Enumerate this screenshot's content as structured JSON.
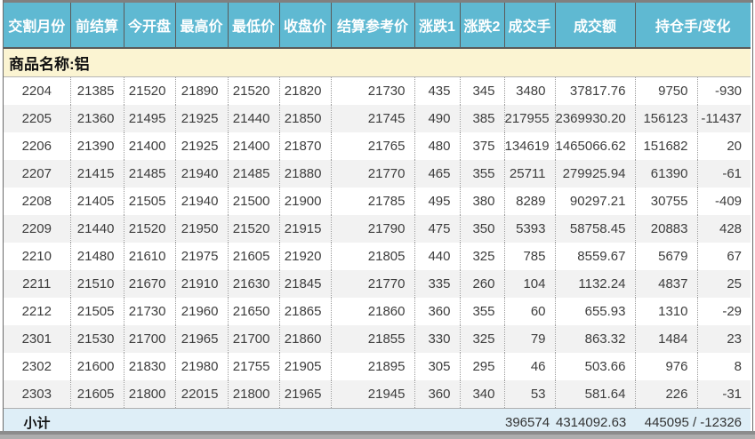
{
  "header": {
    "columns": [
      "交割月份",
      "前结算",
      "今开盘",
      "最高价",
      "最低价",
      "收盘价",
      "结算参考价",
      "涨跌1",
      "涨跌2",
      "成交手",
      "成交额",
      "持仓手/变化"
    ]
  },
  "product": {
    "label": "商品名称:铝"
  },
  "table": {
    "rows": [
      [
        "2204",
        "21385",
        "21520",
        "21890",
        "21520",
        "21820",
        "21730",
        "435",
        "345",
        "3480",
        "37817.76",
        "9750",
        "-930"
      ],
      [
        "2205",
        "21360",
        "21495",
        "21925",
        "21440",
        "21850",
        "21745",
        "490",
        "385",
        "217955",
        "2369930.20",
        "156123",
        "-11437"
      ],
      [
        "2206",
        "21390",
        "21400",
        "21925",
        "21400",
        "21870",
        "21765",
        "480",
        "375",
        "134619",
        "1465066.62",
        "151682",
        "20"
      ],
      [
        "2207",
        "21415",
        "21485",
        "21940",
        "21485",
        "21880",
        "21770",
        "465",
        "355",
        "25711",
        "279925.94",
        "61390",
        "-61"
      ],
      [
        "2208",
        "21405",
        "21505",
        "21940",
        "21500",
        "21900",
        "21785",
        "495",
        "380",
        "8289",
        "90297.21",
        "30755",
        "-409"
      ],
      [
        "2209",
        "21440",
        "21520",
        "21950",
        "21520",
        "21915",
        "21790",
        "475",
        "350",
        "5393",
        "58758.45",
        "20883",
        "428"
      ],
      [
        "2210",
        "21480",
        "21610",
        "21975",
        "21605",
        "21920",
        "21805",
        "440",
        "325",
        "785",
        "8559.67",
        "5679",
        "67"
      ],
      [
        "2211",
        "21510",
        "21670",
        "21910",
        "21630",
        "21845",
        "21770",
        "335",
        "260",
        "104",
        "1132.24",
        "4837",
        "25"
      ],
      [
        "2212",
        "21505",
        "21730",
        "21960",
        "21650",
        "21865",
        "21860",
        "360",
        "355",
        "60",
        "655.93",
        "1310",
        "-29"
      ],
      [
        "2301",
        "21530",
        "21700",
        "21965",
        "21700",
        "21860",
        "21855",
        "330",
        "325",
        "79",
        "863.32",
        "1484",
        "23"
      ],
      [
        "2302",
        "21600",
        "21830",
        "21980",
        "21755",
        "21905",
        "21895",
        "305",
        "295",
        "46",
        "503.66",
        "976",
        "8"
      ],
      [
        "2303",
        "21605",
        "21800",
        "22015",
        "21800",
        "21965",
        "21945",
        "360",
        "340",
        "53",
        "581.64",
        "226",
        "-31"
      ]
    ]
  },
  "subtotal": {
    "label": "小计",
    "volume": "396574",
    "turnover": "4314092.63",
    "open_interest_change": "445095 / -12326"
  },
  "colors": {
    "header_bg": "#5FB9D2",
    "header_text": "#FFFFFF",
    "product_row_bg": "#FBF4D2",
    "alt_row_bg": "#F2F2F2",
    "subtotal_bg": "#DEEEF7",
    "data_text": "#3D3D3D"
  }
}
